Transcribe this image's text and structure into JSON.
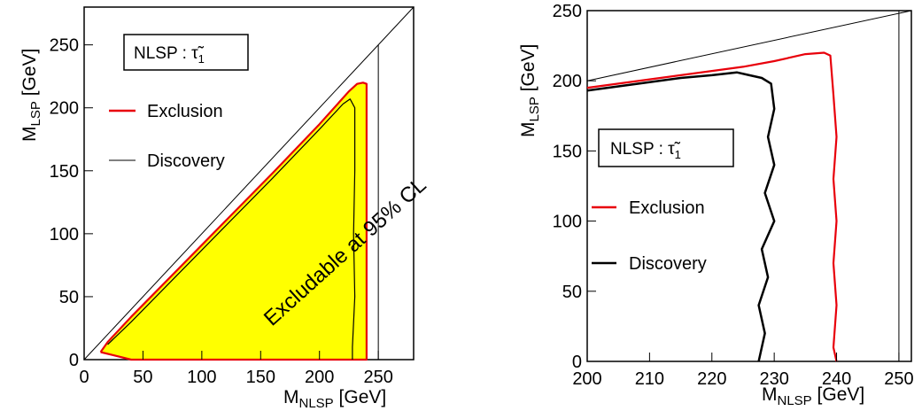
{
  "chart_data": [
    {
      "type": "line",
      "xlabel_main": "M",
      "xlabel_sub": "NLSP",
      "xlabel_unit": " [GeV]",
      "ylabel_main": "M",
      "ylabel_sub": "LSP",
      "ylabel_unit": " [GeV]",
      "xlim": [
        0,
        280
      ],
      "ylim": [
        0,
        280
      ],
      "xticks": [
        "0",
        "50",
        "100",
        "150",
        "200",
        "250"
      ],
      "yticks": [
        "0",
        "50",
        "100",
        "150",
        "200",
        "250"
      ],
      "box_label": "NLSP : τ̃",
      "box_label_sub": "1",
      "annotation": "Excludable at 95% CL",
      "legend": [
        {
          "name": "Exclusion",
          "color": "#e8000b"
        },
        {
          "name": "Discovery",
          "color": "#000000"
        }
      ],
      "fill_color": "#ffff00",
      "series": [
        {
          "name": "Exclusion",
          "color": "#e8000b",
          "x": [
            14,
            20,
            40,
            80,
            120,
            160,
            200,
            225,
            232,
            237,
            240,
            240,
            240,
            234,
            220,
            160,
            100,
            40,
            14
          ],
          "y": [
            6,
            14,
            34,
            72,
            110,
            148,
            187,
            213,
            219,
            220,
            219,
            150,
            0,
            0,
            0,
            0,
            0,
            0,
            6
          ]
        },
        {
          "name": "Discovery",
          "color": "#000000",
          "x": [
            20,
            40,
            80,
            120,
            160,
            200,
            220,
            226,
            230,
            230,
            229,
            230,
            228,
            228
          ],
          "y": [
            12,
            30,
            68,
            106,
            144,
            183,
            203,
            207,
            200,
            150,
            100,
            50,
            10,
            0
          ]
        }
      ],
      "reference_lines": [
        {
          "label": "M_LSP = M_NLSP",
          "x": [
            0,
            280
          ],
          "y": [
            0,
            280
          ]
        },
        {
          "label": "M_NLSP = 250",
          "x": [
            250,
            250
          ],
          "y": [
            0,
            250
          ]
        }
      ]
    },
    {
      "type": "line",
      "xlabel_main": "M",
      "xlabel_sub": "NLSP",
      "xlabel_unit": " [GeV]",
      "ylabel_main": "M",
      "ylabel_sub": "LSP",
      "ylabel_unit": " [GeV]",
      "xlim": [
        200,
        252
      ],
      "ylim": [
        0,
        250
      ],
      "xticks": [
        "200",
        "210",
        "220",
        "230",
        "240",
        "250"
      ],
      "yticks": [
        "0",
        "50",
        "100",
        "150",
        "200",
        "250"
      ],
      "box_label": "NLSP : τ̃",
      "box_label_sub": "1",
      "legend": [
        {
          "name": "Exclusion",
          "color": "#e8000b"
        },
        {
          "name": "Discovery",
          "color": "#000000"
        }
      ],
      "series": [
        {
          "name": "Exclusion",
          "color": "#e8000b",
          "x": [
            200,
            205,
            210,
            215,
            220,
            225,
            230,
            235,
            238,
            239,
            239.5,
            240,
            239.5,
            240,
            239.5,
            240,
            239.5,
            240
          ],
          "y": [
            195,
            198,
            201,
            204,
            207,
            210,
            214,
            219,
            220,
            218,
            190,
            160,
            130,
            100,
            70,
            40,
            10,
            0
          ]
        },
        {
          "name": "Discovery",
          "color": "#000000",
          "x": [
            200,
            205,
            210,
            215,
            220,
            224,
            226,
            228,
            229.5,
            230,
            229,
            230,
            228.5,
            230,
            228,
            229,
            227.5,
            228.5,
            227.5
          ],
          "y": [
            193,
            196,
            199,
            202,
            204,
            206,
            204,
            202,
            198,
            180,
            160,
            140,
            120,
            100,
            80,
            60,
            40,
            20,
            0
          ]
        }
      ],
      "reference_lines": [
        {
          "label": "M_LSP = M_NLSP",
          "x": [
            200,
            252
          ],
          "y": [
            200,
            252
          ]
        },
        {
          "label": "M_NLSP = 250",
          "x": [
            250,
            250
          ],
          "y": [
            0,
            250
          ]
        }
      ]
    }
  ]
}
